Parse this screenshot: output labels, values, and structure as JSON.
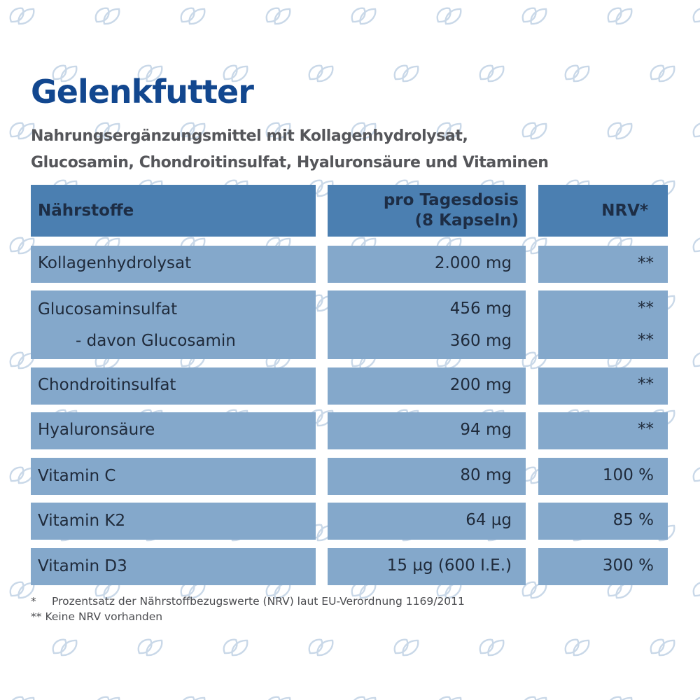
{
  "title": "Gelenkfutter",
  "subtitle": {
    "line1": "Nahrungsergänzungsmittel mit Kollagenhydrolysat,",
    "line2": "Glucosamin, Chondroitinsulfat, Hyaluronsäure und Vitaminen"
  },
  "table": {
    "headers": {
      "nutrient": "Nährstoffe",
      "dose_line1": "pro Tagesdosis",
      "dose_line2": "(8 Kapseln)",
      "nrv": "NRV*"
    },
    "rows": [
      {
        "nutrient": "Kollagenhydrolysat",
        "dose": "2.000 mg",
        "nrv": "**"
      },
      {
        "nutrient": "Glucosaminsulfat",
        "dose": "456 mg",
        "nrv": "**",
        "sub": {
          "nutrient": "- davon Glucosamin",
          "dose": "360 mg",
          "nrv": "**"
        }
      },
      {
        "nutrient": "Chondroitinsulfat",
        "dose": "200 mg",
        "nrv": "**"
      },
      {
        "nutrient": "Hyaluronsäure",
        "dose": "94 mg",
        "nrv": "**"
      },
      {
        "nutrient": "Vitamin C",
        "dose": "80 mg",
        "nrv": "100 %"
      },
      {
        "nutrient": "Vitamin K2",
        "dose": "64 µg",
        "nrv": "85 %"
      },
      {
        "nutrient": "Vitamin D3",
        "dose": "15 µg (600 I.E.)",
        "nrv": "300 %"
      }
    ]
  },
  "footnotes": [
    {
      "mark": "*",
      "text": "Prozentsatz der Nährstoffbezugswerte (NRV) laut EU-Verordnung 1169/2011"
    },
    {
      "mark": "**",
      "text": "Keine NRV vorhanden"
    }
  ],
  "colors": {
    "title": "#12478f",
    "header_bg": "#4b7fb1",
    "row_bg": "#84a8cb",
    "watermark": "#c9d8e8"
  },
  "icons": {
    "watermark": "leaf-pattern-icon"
  }
}
